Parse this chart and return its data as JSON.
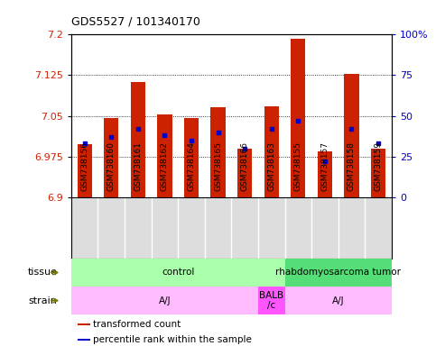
{
  "title": "GDS5527 / 101340170",
  "samples": [
    "GSM738156",
    "GSM738160",
    "GSM738161",
    "GSM738162",
    "GSM738164",
    "GSM738165",
    "GSM738166",
    "GSM738163",
    "GSM738155",
    "GSM738157",
    "GSM738158",
    "GSM738159"
  ],
  "bar_bottom": 6.9,
  "bar_tops": [
    6.997,
    7.046,
    7.113,
    7.052,
    7.046,
    7.065,
    6.99,
    7.067,
    7.192,
    6.984,
    7.127,
    6.99
  ],
  "percentile_ranks": [
    33,
    37,
    42,
    38,
    35,
    40,
    30,
    42,
    47,
    22,
    42,
    33
  ],
  "ylim_left": [
    6.9,
    7.2
  ],
  "ylim_right": [
    0,
    100
  ],
  "yticks_left": [
    6.9,
    6.975,
    7.05,
    7.125,
    7.2
  ],
  "yticks_right": [
    0,
    25,
    50,
    75,
    100
  ],
  "bar_color": "#cc2200",
  "marker_color": "#0000cc",
  "tissue_sections": [
    {
      "label": "control",
      "start": 0,
      "end": 7,
      "color": "#aaffaa"
    },
    {
      "label": "rhabdomyosarcoma tumor",
      "start": 8,
      "end": 11,
      "color": "#55dd77"
    }
  ],
  "strain_sections": [
    {
      "label": "A/J",
      "start": 0,
      "end": 6,
      "color": "#ffbbff"
    },
    {
      "label": "BALB\n/c",
      "start": 7,
      "end": 7,
      "color": "#ff55ff"
    },
    {
      "label": "A/J",
      "start": 8,
      "end": 11,
      "color": "#ffbbff"
    }
  ],
  "legend_items": [
    {
      "color": "#cc2200",
      "label": "transformed count"
    },
    {
      "color": "#0000cc",
      "label": "percentile rank within the sample"
    }
  ],
  "xlabel_bg": "#dddddd",
  "left_label_color": "#000000",
  "arrow_color": "#555500"
}
